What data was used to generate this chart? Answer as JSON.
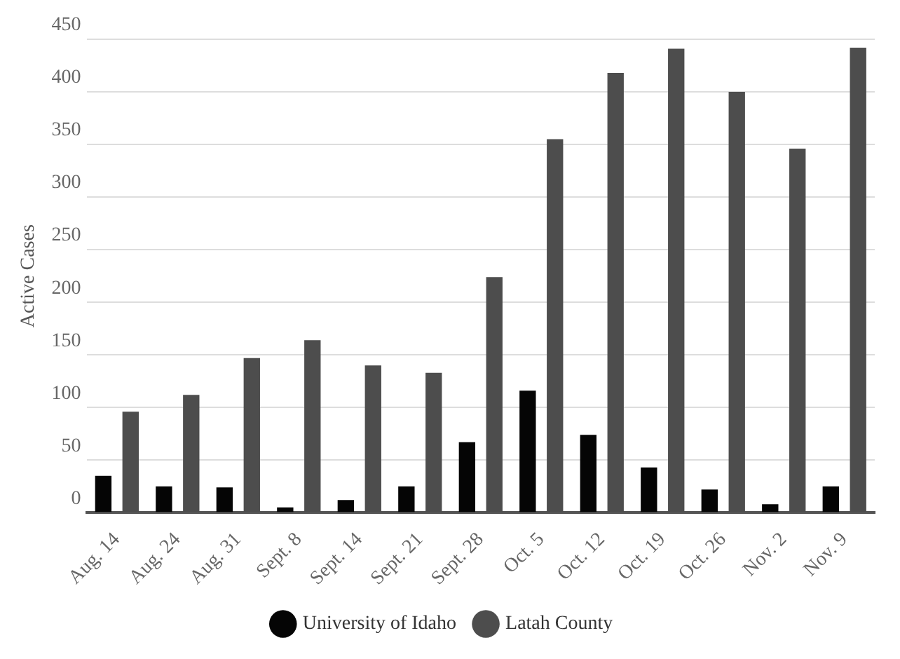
{
  "chart_data": {
    "type": "bar",
    "ylabel": "Active Cases",
    "categories": [
      "Aug. 14",
      "Aug. 24",
      "Aug. 31",
      "Sept. 8",
      "Sept. 14",
      "Sept. 21",
      "Sept. 28",
      "Oct. 5",
      "Oct. 12",
      "Oct. 19",
      "Oct. 26",
      "Nov. 2",
      "Nov. 9"
    ],
    "series": [
      {
        "name": "University of Idaho",
        "color": "#050505",
        "values": [
          35,
          25,
          24,
          5,
          12,
          25,
          67,
          116,
          74,
          43,
          22,
          8,
          25
        ]
      },
      {
        "name": "Latah County",
        "color": "#4d4d4d",
        "values": [
          96,
          112,
          147,
          164,
          140,
          133,
          224,
          355,
          418,
          441,
          400,
          346,
          442
        ]
      }
    ],
    "ylim": [
      0,
      450
    ],
    "yticks": [
      0,
      50,
      100,
      150,
      200,
      250,
      300,
      350,
      400,
      450
    ],
    "grid": "y",
    "legend": "bottom",
    "marker": "circle"
  }
}
